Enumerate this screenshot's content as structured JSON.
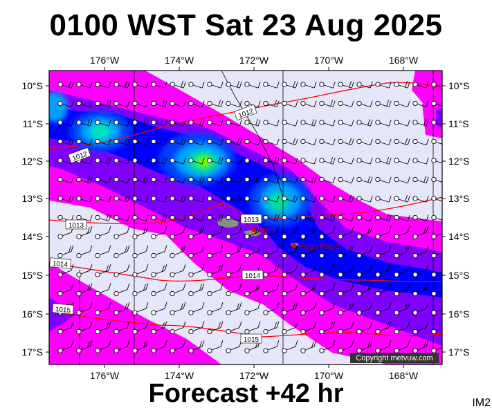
{
  "title": "0100 WST Sat 23 Aug 2025",
  "footer": "Forecast +42 hr",
  "tag": "IM2",
  "copyright": "Copyright metvuw.com",
  "map": {
    "lon_labels": [
      "176°W",
      "174°W",
      "172°W",
      "170°W",
      "168°W"
    ],
    "lat_labels": [
      "10°S",
      "11°S",
      "12°S",
      "13°S",
      "14°S",
      "15°S",
      "16°S",
      "17°S"
    ],
    "places": [
      {
        "name": "Apia",
        "lon": -171.76,
        "lat": -13.83
      },
      {
        "name": "Pago Pago",
        "lon": -170.7,
        "lat": -14.28
      }
    ],
    "isobar_labels": [
      "1012",
      "1012",
      "1013",
      "1013",
      "1014",
      "1014",
      "1015",
      "1015"
    ],
    "colors": {
      "land": "#8c8c8c",
      "background": "#e6e6fa",
      "isobar": "#ff0000",
      "rain_light": "#ff00ff",
      "rain_medium": "#8000ff",
      "rain_heavy": "#0000ff",
      "rain_heavier": "#00a0ff",
      "rain_extreme": "#00ff60"
    }
  }
}
